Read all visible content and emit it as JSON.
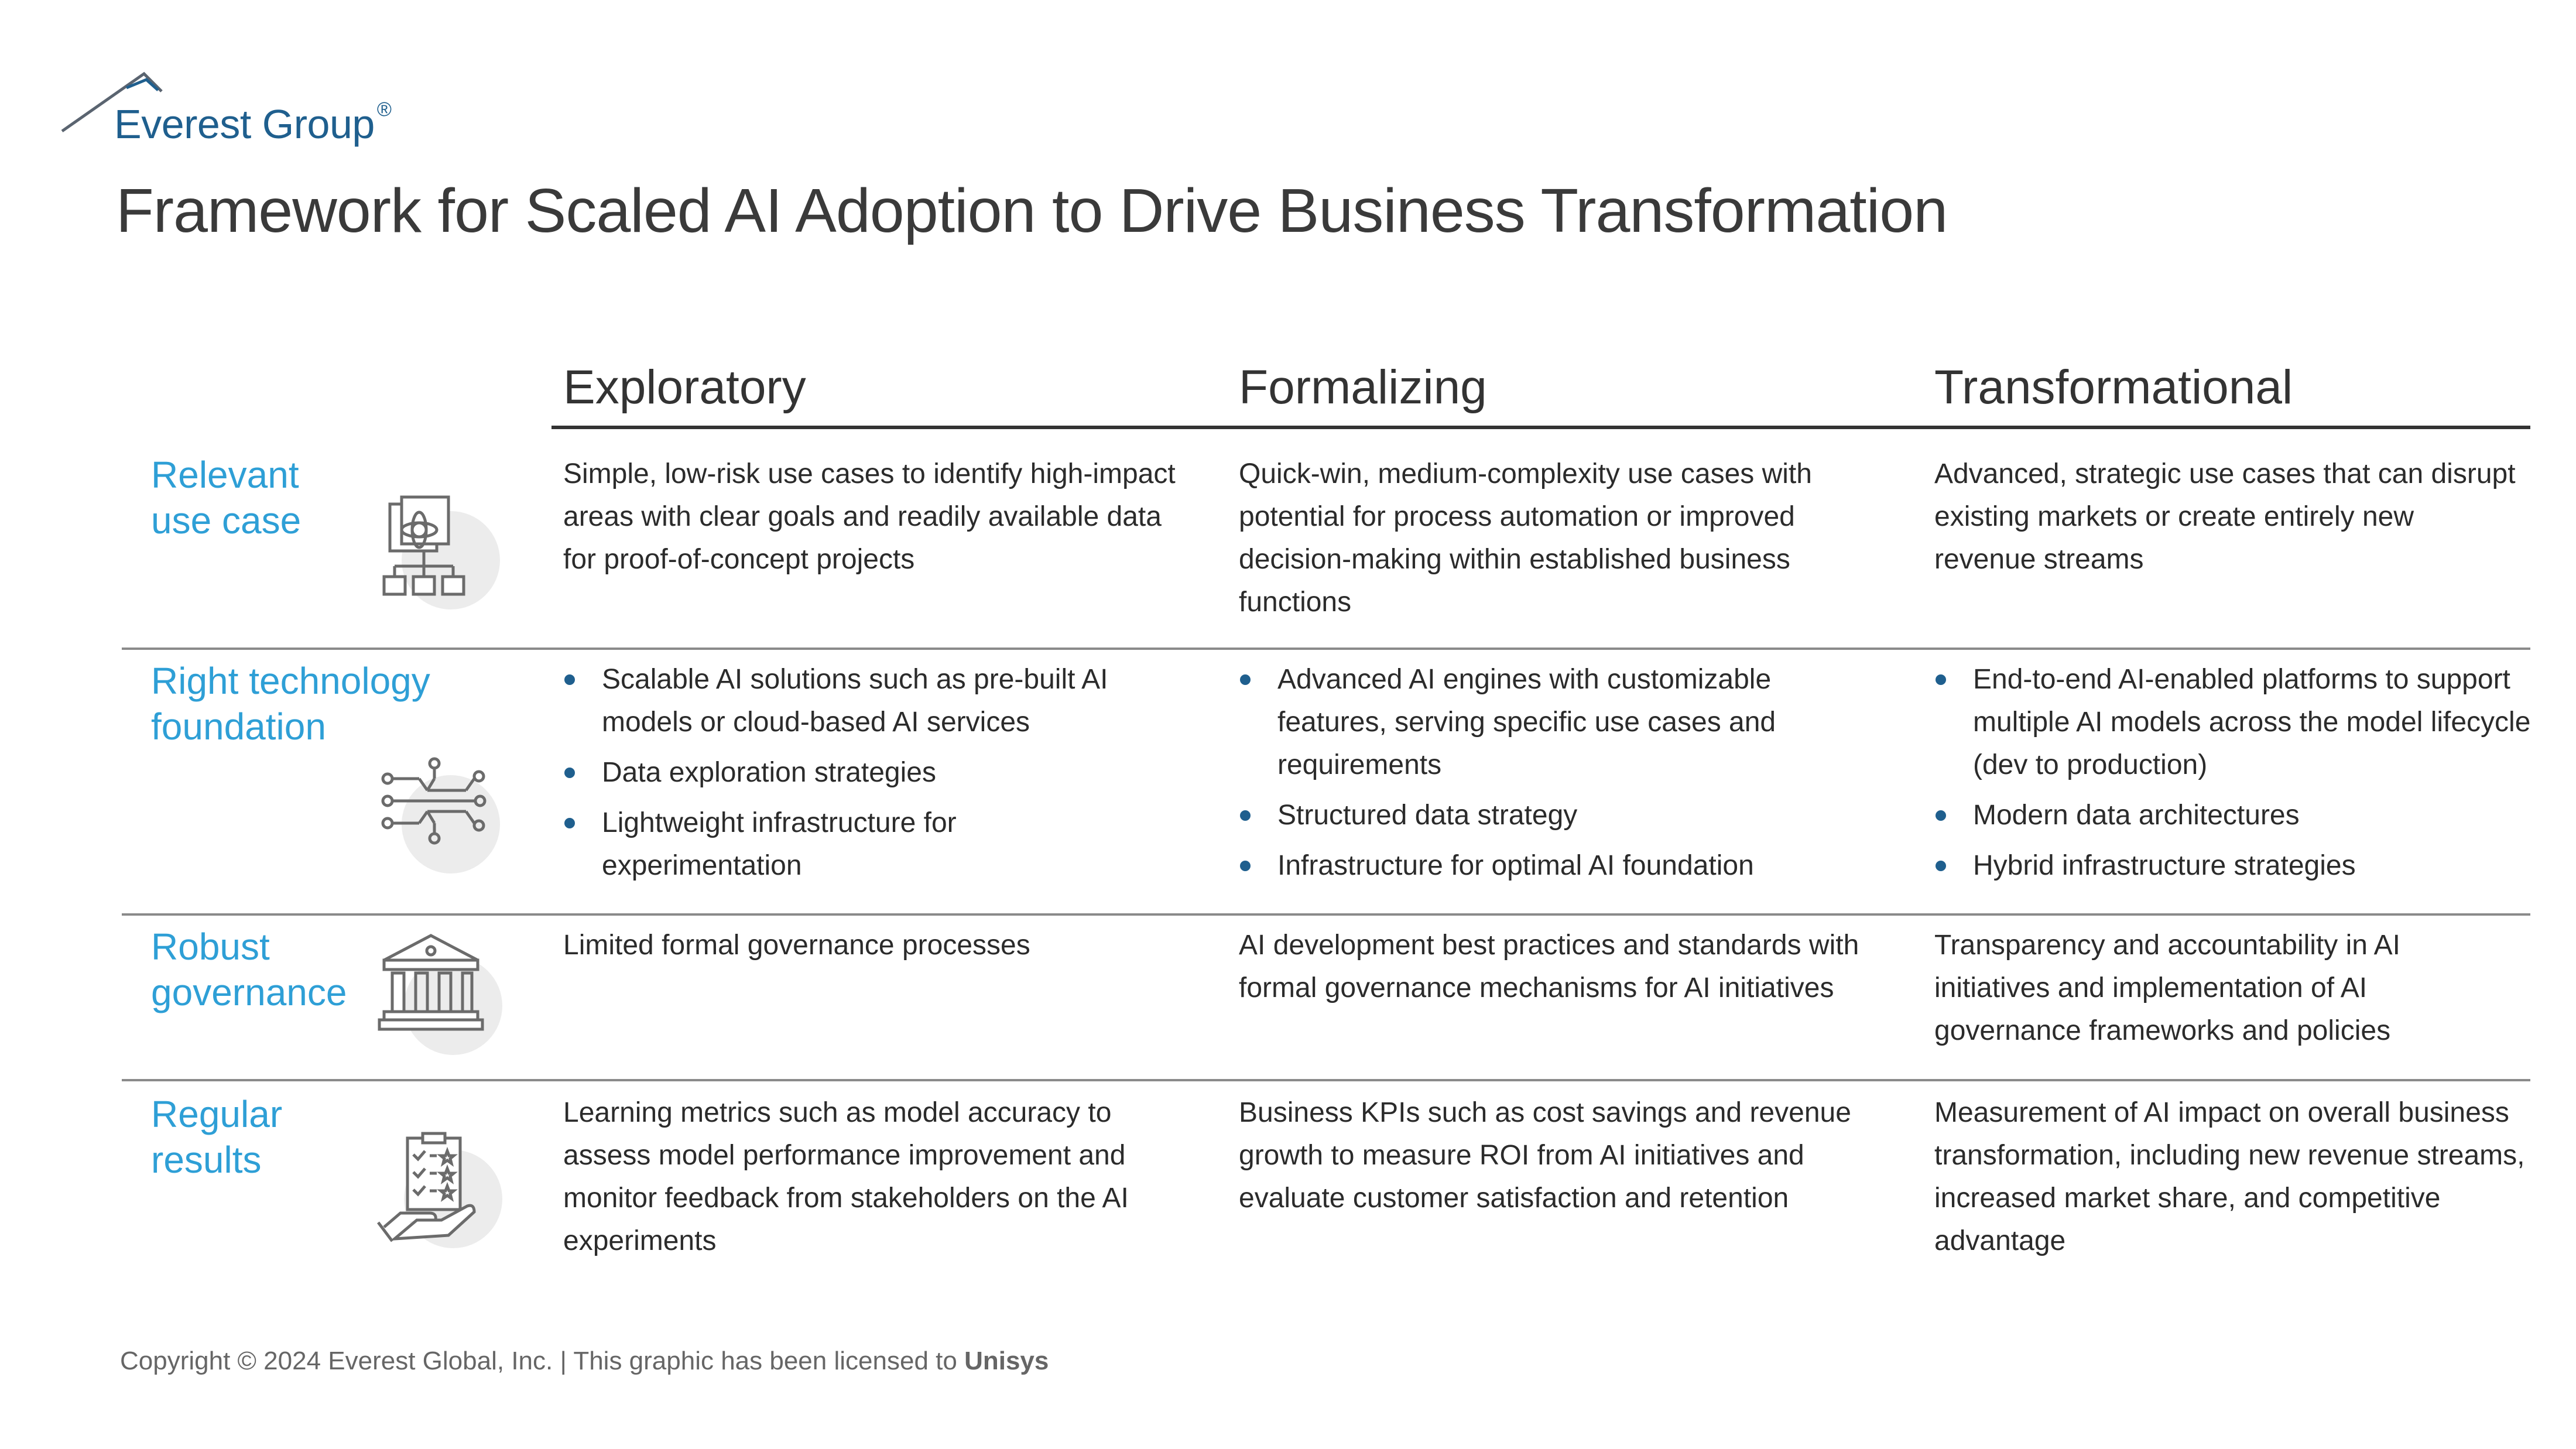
{
  "brand": {
    "name": "Everest Group",
    "registered": "®"
  },
  "title": "Framework for Scaled AI Adoption to Drive Business Transformation",
  "columns": [
    "Exploratory",
    "Formalizing",
    "Transformational"
  ],
  "rows": [
    {
      "label": [
        "Relevant",
        "use case"
      ],
      "icon": "use-case-flowchart-icon",
      "cells": [
        {
          "text": "Simple, low-risk use cases to identify high-impact areas with clear goals and readily available data for proof-of-concept projects"
        },
        {
          "text": "Quick-win, medium-complexity use cases with potential for process automation or improved decision-making within established business functions"
        },
        {
          "text": "Advanced, strategic use cases that can disrupt existing markets or create entirely new revenue streams"
        }
      ]
    },
    {
      "label": [
        "Right technology",
        "foundation"
      ],
      "icon": "circuit-icon",
      "cells": [
        {
          "bullets": [
            "Scalable AI solutions such as pre-built AI models or cloud-based AI services",
            "Data exploration strategies",
            "Lightweight infrastructure for experimentation"
          ]
        },
        {
          "bullets": [
            "Advanced AI engines with customizable features, serving specific use cases and requirements",
            "Structured data strategy",
            "Infrastructure for optimal AI foundation"
          ]
        },
        {
          "bullets": [
            "End-to-end AI-enabled platforms to support multiple AI models across the model lifecycle (dev to production)",
            "Modern data architectures",
            "Hybrid infrastructure strategies"
          ]
        }
      ]
    },
    {
      "label": [
        "Robust",
        "governance"
      ],
      "icon": "institution-building-icon",
      "cells": [
        {
          "text": "Limited formal governance processes"
        },
        {
          "text": "AI development best practices and standards with formal governance mechanisms for AI initiatives"
        },
        {
          "text": "Transparency and accountability in AI initiatives and implementation of AI governance frameworks and policies"
        }
      ]
    },
    {
      "label": [
        "Regular",
        "results"
      ],
      "icon": "checklist-hand-icon",
      "cells": [
        {
          "text": "Learning metrics such as model accuracy to assess model performance improvement and monitor feedback from stakeholders on the AI experiments"
        },
        {
          "text": "Business KPIs such as cost savings and revenue growth to measure ROI from AI initiatives and evaluate customer satisfaction and retention"
        },
        {
          "text": "Measurement of AI impact on overall business transformation, including new revenue streams, increased market share, and competitive advantage"
        }
      ]
    }
  ],
  "footer": {
    "copyright": "Copyright © 2024 Everest Global, Inc. | This graphic has been licensed to",
    "licensee": "Unisys"
  },
  "colors": {
    "accent": "#2e9fd6",
    "brand": "#1f5f8e",
    "text": "#333333",
    "rule": "#8a8a8a"
  }
}
